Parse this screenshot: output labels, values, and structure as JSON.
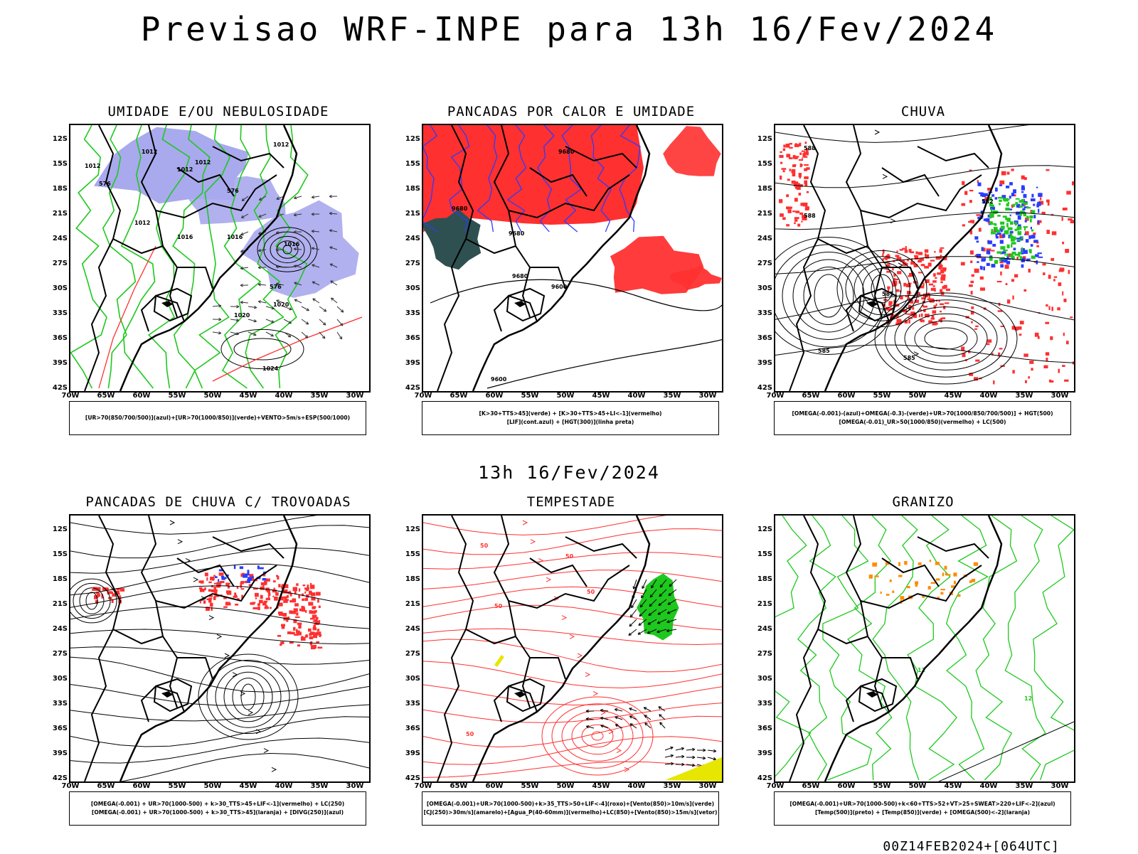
{
  "header": {
    "title": "Previsao WRF-INPE  para 13h 16/Fev/2024"
  },
  "mid_title": "13h 16/Fev/2024",
  "footer": "00Z14FEB2024+[064UTC]",
  "axes": {
    "lat_labels": [
      "12S",
      "15S",
      "18S",
      "21S",
      "24S",
      "27S",
      "30S",
      "33S",
      "36S",
      "39S",
      "42S"
    ],
    "lon_labels": [
      "70W",
      "65W",
      "60W",
      "55W",
      "50W",
      "45W",
      "40W",
      "35W",
      "30W"
    ]
  },
  "colors": {
    "humidity_blue": "#a9a9ee",
    "green_contour": "#1ec81e",
    "red": "#ff3030",
    "dark_teal": "#2f5050",
    "blue_contour": "#2a3cff",
    "orange": "#ff8c00",
    "yellow": "#e6e600"
  },
  "panels": [
    {
      "id": "umidade",
      "title": "UMIDADE E/OU NEBULOSIDADE",
      "legend": [
        "[UR>70(850/700/500)](azul)+[UR>70(1000/850)](verde)+VENTO>5m/s+ESP(500/1000)"
      ],
      "contour_labels": [
        "1012",
        "1012",
        "1012",
        "1012",
        "1012",
        "1012",
        "1016",
        "1016",
        "1016",
        "1020",
        "1020",
        "1024",
        "576",
        "576",
        "576"
      ]
    },
    {
      "id": "pancadas-calor",
      "title": "PANCADAS POR CALOR E UMIDADE",
      "legend": [
        "[K>30+TTS>45](verde) + [K>30+TTS>45+LI<-1](vermelho)",
        "[LIF](cont.azul) + [HGT(300)](linha preta)"
      ],
      "contour_labels": [
        "9680",
        "9680",
        "9680",
        "9680",
        "9600",
        "9600"
      ]
    },
    {
      "id": "chuva",
      "title": "CHUVA",
      "legend": [
        "[OMEGA(-0.001)-(azul)+OMEGA(-0.3)-(verde)+UR>70(1000/850/700/500)] + HGT(500)",
        "[OMEGA(-0.01)_UR>50(1000/850)(vermelho) + LC(500)"
      ],
      "contour_labels": [
        "588",
        "588",
        "585",
        "585",
        "585",
        "582"
      ]
    },
    {
      "id": "pancadas-trovoadas",
      "title": "PANCADAS DE CHUVA C/ TROVOADAS",
      "legend": [
        "[OMEGA(-0.001) + UR>70(1000-500) + k>30_TTS>45+LIF<-1](vermelho) + LC(250)",
        "[OMEGA(-0.001) + UR>70(1000-500) + k>30_TTS>45](laranja) + [DIVG(250)](azul)"
      ],
      "contour_labels": []
    },
    {
      "id": "tempestade",
      "title": "TEMPESTADE",
      "legend": [
        "[OMEGA(-0.001)+UR>70(1000-500)+k>35_TTS>50+LIF<-4](roxo)+[Vento(850)>10m/s](verde)",
        "[CJ(250)>30m/s](amarelo)+[Agua_P(40-60mm)](vermelho)+LC(850)+[Vento(850)>15m/s](vetor)"
      ],
      "contour_labels": [
        "50",
        "50",
        "50",
        "50",
        "50"
      ]
    },
    {
      "id": "granizo",
      "title": "GRANIZO",
      "legend": [
        "[OMEGA(-0.001)+UR>70(1000-500)+k<60+TTS>52+VT>25+SWEAT>220+LIF<-2](azul)",
        "[Temp(500)](preto) + [Temp(850)](verde) + [OMEGA(500)<-2](laranja)"
      ],
      "contour_labels": [
        "12",
        "12"
      ]
    }
  ]
}
